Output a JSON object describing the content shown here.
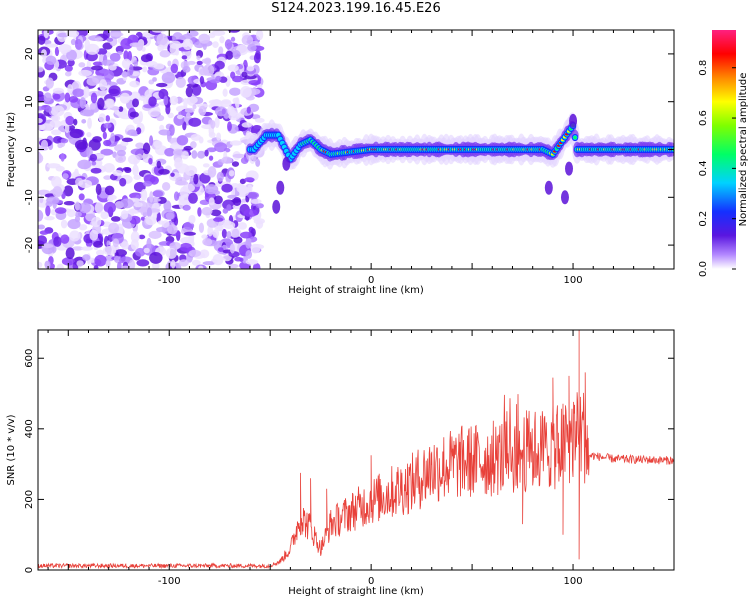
{
  "page": {
    "title": "S124.2023.199.16.45.E26"
  },
  "chart_data": [
    {
      "type": "heatmap",
      "xlabel": "Height of straight line (km)",
      "ylabel": "Frequency (Hz)",
      "xlim": [
        -165,
        150
      ],
      "ylim": [
        -25,
        25
      ],
      "x_ticks": [
        -100,
        0,
        100
      ],
      "y_ticks": [
        -20,
        -10,
        0,
        10,
        20
      ],
      "colorbar": {
        "label": "Normalized spectral amplitude",
        "range": [
          0,
          0.95
        ],
        "ticks": [
          0.0,
          0.2,
          0.4,
          0.6,
          0.8
        ]
      },
      "signal_track": {
        "description_values_hz": "approximate center frequency of the signal ridge vs height",
        "height_km": [
          -58,
          -52,
          -46,
          -40,
          -35,
          -30,
          -25,
          -20,
          -10,
          0,
          10,
          30,
          60,
          85,
          90,
          100,
          102,
          110,
          130,
          150
        ],
        "frequency_hz": [
          0,
          3,
          3,
          -2,
          1,
          2,
          0,
          -1,
          -0.5,
          0,
          0,
          0,
          0,
          0,
          -1,
          5,
          0,
          0,
          0,
          0
        ]
      },
      "noise_region_height_km": [
        -165,
        -60
      ]
    },
    {
      "type": "line",
      "xlabel": "Height of straight line (km)",
      "ylabel": "SNR (10 * v/v)",
      "xlim": [
        -165,
        150
      ],
      "ylim": [
        0,
        680
      ],
      "x_ticks": [
        -100,
        0,
        100
      ],
      "y_ticks": [
        0,
        200,
        400,
        600
      ],
      "series": [
        {
          "color": "#e8413a",
          "envelope": {
            "x": [
              -165,
              -50,
              -45,
              -40,
              -35,
              -30,
              -25,
              -20,
              -10,
              0,
              10,
              20,
              30,
              45,
              60,
              75,
              80,
              90,
              95,
              100,
              105,
              108,
              120,
              150
            ],
            "y": [
              12,
              12,
              25,
              60,
              150,
              120,
              60,
              130,
              165,
              195,
              220,
              245,
              285,
              305,
              315,
              335,
              340,
              345,
              355,
              380,
              390,
              325,
              315,
              310
            ]
          },
          "peaks": [
            {
              "x": -35,
              "y": 275
            },
            {
              "x": -30,
              "y": 260
            },
            {
              "x": -22,
              "y": 230
            },
            {
              "x": 0,
              "y": 325
            },
            {
              "x": 30,
              "y": 335
            },
            {
              "x": 72,
              "y": 470
            },
            {
              "x": 90,
              "y": 545
            },
            {
              "x": 98,
              "y": 550
            },
            {
              "x": 103,
              "y": 680
            },
            {
              "x": 106,
              "y": 560
            }
          ],
          "dips": [
            {
              "x": 75,
              "y": 130
            },
            {
              "x": 95,
              "y": 100
            },
            {
              "x": 103,
              "y": 30
            }
          ]
        }
      ]
    }
  ],
  "colors": {
    "line": "#e8413a",
    "axis": "#000000",
    "background": "#ffffff"
  }
}
